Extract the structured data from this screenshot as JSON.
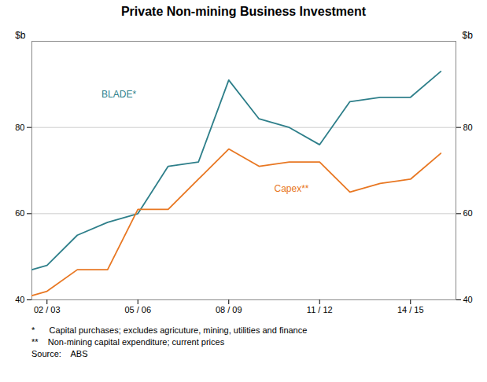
{
  "chart_data": {
    "type": "line",
    "title": "Private Non-mining Business Investment",
    "ylabel": "$b",
    "y2label": "$b",
    "x": [
      2001.5,
      2002,
      2003,
      2004,
      2005,
      2006,
      2007,
      2008,
      2009,
      2010,
      2011,
      2012,
      2013,
      2014,
      2015
    ],
    "series": [
      {
        "name": "BLADE*",
        "color": "#2E7F8A",
        "values": [
          47,
          48,
          55,
          58,
          60,
          71,
          72,
          91,
          82,
          80,
          76,
          86,
          87,
          87,
          93
        ]
      },
      {
        "name": "Capex**",
        "color": "#E87722",
        "values": [
          41,
          42,
          47,
          47,
          61,
          61,
          68,
          75,
          71,
          72,
          72,
          65,
          67,
          68,
          74
        ]
      }
    ],
    "annotations": [
      {
        "text": "BLADE*",
        "x": 2003.8,
        "y": 87,
        "color": "#2E7F8A"
      },
      {
        "text": "Capex**",
        "x": 2009.5,
        "y": 65,
        "color": "#E87722"
      }
    ],
    "xlim": [
      2001.5,
      2015.5
    ],
    "xticks": [
      {
        "value": 2002,
        "label": "02 / 03"
      },
      {
        "value": 2005,
        "label": "05 / 06"
      },
      {
        "value": 2008,
        "label": "08 / 09"
      },
      {
        "value": 2011,
        "label": "11 / 12"
      },
      {
        "value": 2014,
        "label": "14 / 15"
      }
    ],
    "ylim": [
      40,
      100
    ],
    "yticks": [
      40,
      60,
      80
    ],
    "y2lim": [
      40,
      100
    ],
    "y2ticks": [
      40,
      60,
      80
    ],
    "grid": true,
    "notes": [
      "*      Capital purchases; excludes agricuture, mining, utilities and finance",
      "**    Non-mining capital expenditure; current prices",
      "Source:    ABS"
    ]
  }
}
